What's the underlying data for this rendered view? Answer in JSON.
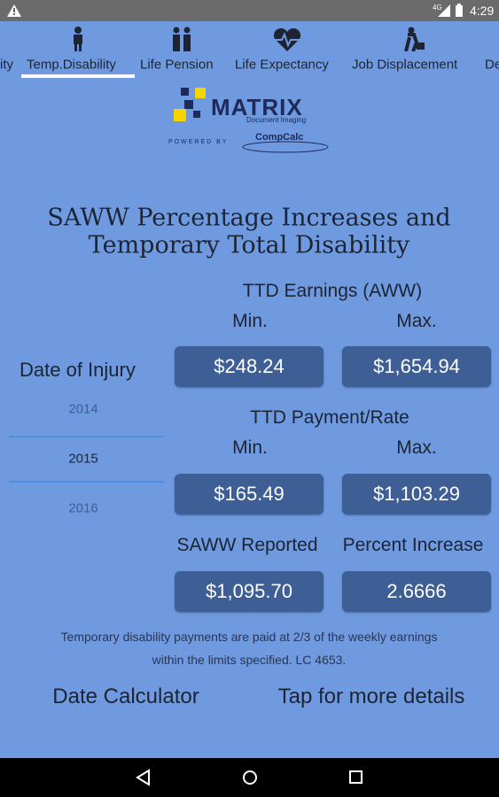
{
  "status_bar": {
    "network": "4G",
    "time": "4:29"
  },
  "tabs": [
    "ity",
    "Temp.Disability",
    "Life Pension",
    "Life Expectancy",
    "Job Displacement",
    "De"
  ],
  "logo": {
    "brand": "MATRIX",
    "tagline": "Document Imaging",
    "powered_by": "POWERED BY",
    "partner": "CompCalc"
  },
  "title": [
    "SAWW Percentage Increases and",
    "Temporary Total Disability"
  ],
  "ttd_earnings": {
    "label": "TTD Earnings (AWW)",
    "min_label": "Min.",
    "max_label": "Max.",
    "min": "$248.24",
    "max": "$1,654.94"
  },
  "date_of_injury": {
    "label": "Date of Injury",
    "years": [
      "2014",
      "2015",
      "2016"
    ]
  },
  "ttd_payment": {
    "label": "TTD Payment/Rate",
    "min_label": "Min.",
    "max_label": "Max.",
    "min": "$165.49",
    "max": "$1,103.29"
  },
  "saww": {
    "reported_label": "SAWW Reported",
    "increase_label": "Percent Increase",
    "reported": "$1,095.70",
    "increase": "2.6666"
  },
  "note": [
    "Temporary disability payments are paid at 2/3 of the weekly earnings",
    "within the limits specified. LC 4653."
  ],
  "footer": {
    "date_calculator": "Date Calculator",
    "details": "Tap for more details"
  }
}
